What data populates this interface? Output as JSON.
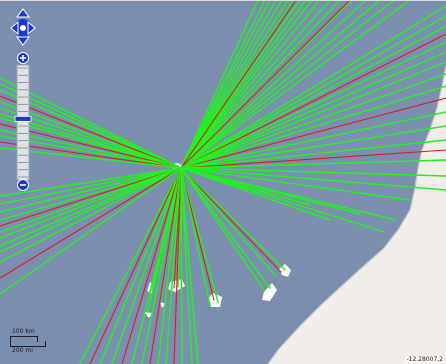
{
  "colors": {
    "sea": "#7b8eb0",
    "land": "#f1ede9",
    "island": "#ffffff",
    "route_green": "#22f022",
    "route_red": "#d52020",
    "control_blue": "#1a3bc8"
  },
  "controls": {
    "pan": {
      "up": "pan-up-icon",
      "left": "pan-left-icon",
      "right": "pan-right-icon",
      "down": "pan-down-icon"
    },
    "zoom": {
      "in": "zoom-in-icon",
      "out": "zoom-out-icon",
      "levels": 16,
      "current_level": 7
    }
  },
  "scale": {
    "top_label": "100 km",
    "bottom_label": "200 mi"
  },
  "coordinates": "-12.28007,2"
}
